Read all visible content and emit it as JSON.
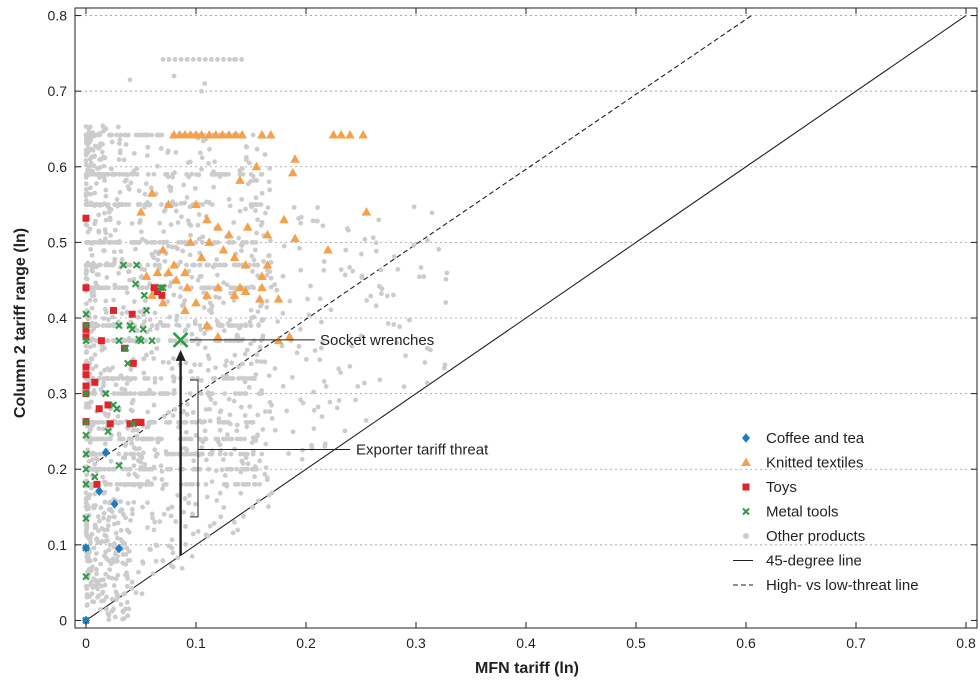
{
  "chart_data": {
    "type": "scatter",
    "xlabel": "MFN tariff (ln)",
    "ylabel": "Column 2 tariff range (ln)",
    "xlim": [
      -0.01,
      0.81
    ],
    "ylim": [
      -0.01,
      0.81
    ],
    "x_ticks": [
      0,
      0.1,
      0.2,
      0.3,
      0.4,
      0.5,
      0.6,
      0.7,
      0.8
    ],
    "x_tick_labels": [
      "0",
      "0.1",
      "0.2",
      "0.3",
      "0.4",
      "0.5",
      "0.6",
      "0.7",
      "0.8"
    ],
    "y_ticks": [
      0,
      0.1,
      0.2,
      0.3,
      0.4,
      0.5,
      0.6,
      0.7,
      0.8
    ],
    "y_tick_labels": [
      "0",
      "0.1",
      "0.2",
      "0.3",
      "0.4",
      "0.5",
      "0.6",
      "0.7",
      "0.8"
    ],
    "grid": "horizontal dotted",
    "legend_position": "bottom-right",
    "series": [
      {
        "name": "Coffee and tea",
        "marker": "diamond",
        "color": "#1f7ac2",
        "points": [
          [
            0,
            0
          ],
          [
            0,
            0.096
          ],
          [
            0.018,
            0.222
          ],
          [
            0.012,
            0.171
          ],
          [
            0.026,
            0.154
          ],
          [
            0.03,
            0.095
          ]
        ]
      },
      {
        "name": "Knitted textiles",
        "marker": "triangle",
        "color": "#f5a04a",
        "points": [
          [
            0.08,
            0.642
          ],
          [
            0.085,
            0.642
          ],
          [
            0.09,
            0.642
          ],
          [
            0.095,
            0.642
          ],
          [
            0.1,
            0.642
          ],
          [
            0.105,
            0.642
          ],
          [
            0.112,
            0.642
          ],
          [
            0.118,
            0.642
          ],
          [
            0.124,
            0.642
          ],
          [
            0.13,
            0.642
          ],
          [
            0.136,
            0.642
          ],
          [
            0.142,
            0.642
          ],
          [
            0.16,
            0.642
          ],
          [
            0.168,
            0.642
          ],
          [
            0.225,
            0.642
          ],
          [
            0.232,
            0.642
          ],
          [
            0.24,
            0.642
          ],
          [
            0.252,
            0.642
          ],
          [
            0.19,
            0.61
          ],
          [
            0.188,
            0.592
          ],
          [
            0.155,
            0.6
          ],
          [
            0.14,
            0.582
          ],
          [
            0.06,
            0.565
          ],
          [
            0.05,
            0.54
          ],
          [
            0.075,
            0.55
          ],
          [
            0.1,
            0.55
          ],
          [
            0.11,
            0.53
          ],
          [
            0.12,
            0.52
          ],
          [
            0.13,
            0.51
          ],
          [
            0.147,
            0.52
          ],
          [
            0.165,
            0.51
          ],
          [
            0.18,
            0.53
          ],
          [
            0.19,
            0.505
          ],
          [
            0.22,
            0.49
          ],
          [
            0.255,
            0.54
          ],
          [
            0.07,
            0.49
          ],
          [
            0.08,
            0.47
          ],
          [
            0.09,
            0.46
          ],
          [
            0.095,
            0.5
          ],
          [
            0.105,
            0.48
          ],
          [
            0.112,
            0.5
          ],
          [
            0.125,
            0.49
          ],
          [
            0.135,
            0.48
          ],
          [
            0.145,
            0.47
          ],
          [
            0.165,
            0.47
          ],
          [
            0.055,
            0.455
          ],
          [
            0.065,
            0.46
          ],
          [
            0.075,
            0.46
          ],
          [
            0.082,
            0.45
          ],
          [
            0.092,
            0.44
          ],
          [
            0.11,
            0.43
          ],
          [
            0.12,
            0.44
          ],
          [
            0.135,
            0.43
          ],
          [
            0.14,
            0.44
          ],
          [
            0.145,
            0.435
          ],
          [
            0.158,
            0.425
          ],
          [
            0.16,
            0.44
          ],
          [
            0.16,
            0.455
          ],
          [
            0.175,
            0.425
          ],
          [
            0.175,
            0.37
          ],
          [
            0.185,
            0.375
          ],
          [
            0.11,
            0.39
          ],
          [
            0.12,
            0.375
          ],
          [
            0.06,
            0.43
          ],
          [
            0.065,
            0.44
          ],
          [
            0.07,
            0.42
          ],
          [
            0.09,
            0.41
          ],
          [
            0.1,
            0.42
          ]
        ]
      },
      {
        "name": "Toys",
        "marker": "square",
        "color": "#e0242b",
        "points": [
          [
            0,
            0.532
          ],
          [
            0,
            0.44
          ],
          [
            0,
            0.39
          ],
          [
            0,
            0.385
          ],
          [
            0,
            0.375
          ],
          [
            0,
            0.335
          ],
          [
            0,
            0.325
          ],
          [
            0,
            0.31
          ],
          [
            0,
            0.3
          ],
          [
            0,
            0.263
          ],
          [
            0.008,
            0.315
          ],
          [
            0.01,
            0.18
          ],
          [
            0.012,
            0.28
          ],
          [
            0.014,
            0.37
          ],
          [
            0.02,
            0.285
          ],
          [
            0.022,
            0.26
          ],
          [
            0.025,
            0.41
          ],
          [
            0.035,
            0.36
          ],
          [
            0.04,
            0.26
          ],
          [
            0.042,
            0.405
          ],
          [
            0.043,
            0.34
          ],
          [
            0.045,
            0.262
          ],
          [
            0.048,
            0.262
          ],
          [
            0.05,
            0.262
          ],
          [
            0.062,
            0.44
          ],
          [
            0.065,
            0.435
          ],
          [
            0.069,
            0.43
          ]
        ]
      },
      {
        "name": "Metal tools",
        "marker": "cross",
        "color": "#2e9a48",
        "points": [
          [
            0,
            0
          ],
          [
            0,
            0.058
          ],
          [
            0,
            0.096
          ],
          [
            0,
            0.135
          ],
          [
            0,
            0.18
          ],
          [
            0,
            0.2
          ],
          [
            0,
            0.22
          ],
          [
            0,
            0.245
          ],
          [
            0,
            0.262
          ],
          [
            0,
            0.3
          ],
          [
            0,
            0.37
          ],
          [
            0,
            0.39
          ],
          [
            0,
            0.405
          ],
          [
            0.008,
            0.19
          ],
          [
            0.018,
            0.3
          ],
          [
            0.02,
            0.25
          ],
          [
            0.025,
            0.285
          ],
          [
            0.028,
            0.28
          ],
          [
            0.03,
            0.205
          ],
          [
            0.03,
            0.37
          ],
          [
            0.03,
            0.39
          ],
          [
            0.034,
            0.47
          ],
          [
            0.036,
            0.36
          ],
          [
            0.038,
            0.34
          ],
          [
            0.04,
            0.39
          ],
          [
            0.042,
            0.385
          ],
          [
            0.043,
            0.26
          ],
          [
            0.045,
            0.445
          ],
          [
            0.046,
            0.47
          ],
          [
            0.048,
            0.372
          ],
          [
            0.05,
            0.37
          ],
          [
            0.052,
            0.385
          ],
          [
            0.053,
            0.43
          ],
          [
            0.055,
            0.41
          ],
          [
            0.06,
            0.37
          ],
          [
            0.068,
            0.44
          ],
          [
            0.07,
            0.44
          ]
        ]
      },
      {
        "name": "Other products",
        "marker": "circle",
        "color": "#cccccc",
        "generated": "dense cloud of several thousand points between x 0–0.33 and y 0–0.74"
      },
      {
        "name": "45-degree line",
        "style": "solid",
        "color": "#231f20",
        "points": [
          [
            0,
            0
          ],
          [
            0.8,
            0.8
          ]
        ]
      },
      {
        "name": "High- vs low-threat line",
        "style": "dashed",
        "color": "#231f20",
        "points": [
          [
            0,
            0.2
          ],
          [
            0.605,
            0.8
          ]
        ]
      }
    ],
    "highlight": {
      "label": "Socket wrenches",
      "x": 0.086,
      "y": 0.371,
      "marker": "cross",
      "color": "#2e9a48"
    },
    "annotations": [
      {
        "text": "Socket wrenches",
        "target": [
          0.086,
          0.371
        ]
      },
      {
        "text": "Exporter tariff threat",
        "arrow_from": [
          0.086,
          0.086
        ],
        "arrow_to": [
          0.086,
          0.371
        ]
      }
    ],
    "legend": [
      {
        "name": "Coffee and tea",
        "marker": "diamond",
        "color": "#1f7ac2"
      },
      {
        "name": "Knitted textiles",
        "marker": "triangle",
        "color": "#f5a04a"
      },
      {
        "name": "Toys",
        "marker": "square",
        "color": "#e0242b"
      },
      {
        "name": "Metal tools",
        "marker": "cross",
        "color": "#2e9a48"
      },
      {
        "name": "Other products",
        "marker": "circle",
        "color": "#cccccc"
      },
      {
        "name": "45-degree line",
        "marker": "solid-line",
        "color": "#231f20"
      },
      {
        "name": "High- vs low-threat line",
        "marker": "dashed-line",
        "color": "#231f20"
      }
    ]
  }
}
